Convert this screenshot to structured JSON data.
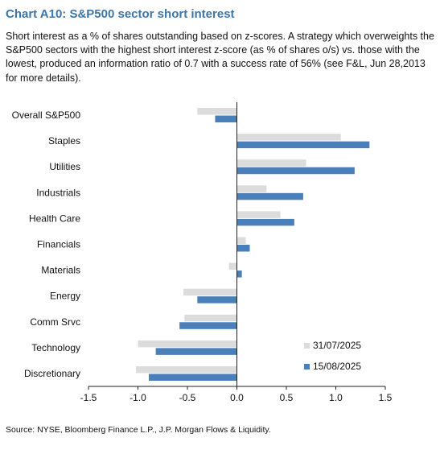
{
  "header": {
    "title": "Chart A10: S&P500 sector short interest",
    "subtitle": "Short interest as a % of shares outstanding based on z-scores. A strategy which overweights the S&P500 sectors with the highest short interest z-score (as % of shares o/s) vs. those with the lowest, produced an information ratio of 0.7 with a success rate of 56% (see F&L, Jun 28,2013 for more details)."
  },
  "footer": {
    "source": "Source: NYSE, Bloomberg Finance L.P., J.P. Morgan Flows & Liquidity."
  },
  "chart_data": {
    "type": "bar",
    "orientation": "horizontal",
    "categories": [
      "Overall S&P500",
      "Staples",
      "Utilities",
      "Industrials",
      "Health Care",
      "Financials",
      "Materials",
      "Energy",
      "Comm Srvc",
      "Technology",
      "Discretionary"
    ],
    "series": [
      {
        "name": "31/07/2025",
        "color": "#dcdcdc",
        "values": [
          -0.4,
          1.05,
          0.7,
          0.3,
          0.44,
          0.09,
          -0.08,
          -0.54,
          -0.53,
          -1.0,
          -1.02
        ]
      },
      {
        "name": "15/08/2025",
        "color": "#4a7fba",
        "values": [
          -0.22,
          1.34,
          1.19,
          0.67,
          0.58,
          0.13,
          0.05,
          -0.4,
          -0.58,
          -0.82,
          -0.89
        ]
      }
    ],
    "xlim": [
      -1.5,
      1.5
    ],
    "xticks": [
      "-1.5",
      "-1.0",
      "-0.5",
      "0.0",
      "0.5",
      "1.0",
      "1.5"
    ],
    "xtick_values": [
      -1.5,
      -1.0,
      -0.5,
      0.0,
      0.5,
      1.0,
      1.5
    ],
    "grid": false,
    "legend_position": "bottom-right",
    "xlabel": "",
    "ylabel": ""
  }
}
